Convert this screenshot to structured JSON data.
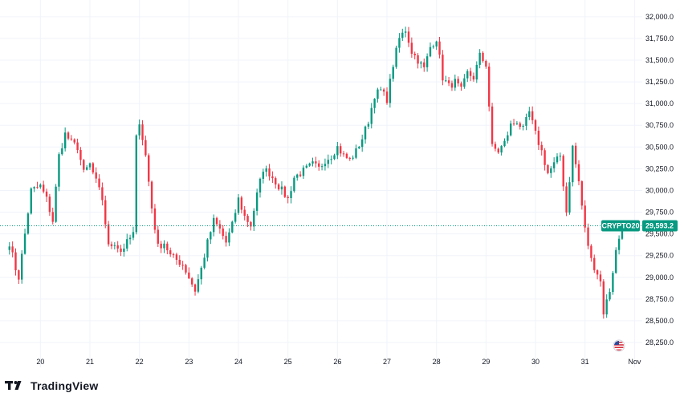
{
  "colors": {
    "up": "#089981",
    "down": "#f23645",
    "grid": "#f0f3fa",
    "axis_text": "#131722",
    "current_line": "#089981",
    "badge": "#089981"
  },
  "branding": {
    "logo_icon": "tradingview-logo-icon",
    "logo_text": "TradingView"
  },
  "event_icon": "us-flag-icon",
  "chart_data": {
    "type": "candlestick",
    "title": "",
    "symbol_label": "CRYPTO20",
    "current_price": 29593.2,
    "current_price_label": "29,593.2",
    "ylim": [
      28130,
      32100
    ],
    "y_ticks": [
      28250,
      28500,
      28750,
      29000,
      29250,
      29500,
      29750,
      30000,
      30250,
      30500,
      30750,
      31000,
      31250,
      31500,
      31750,
      32000
    ],
    "y_tick_labels": [
      "28,250.0",
      "28,500.0",
      "28,750.0",
      "29,000.0",
      "29,250.0",
      "29,500.0",
      "29,750.0",
      "30,000.0",
      "30,250.0",
      "30,500.0",
      "30,750.0",
      "31,000.0",
      "31,250.0",
      "31,500.0",
      "31,750.0",
      "32,000.0"
    ],
    "x_ticks": [
      {
        "label": "20",
        "bar": 10
      },
      {
        "label": "21",
        "bar": 26
      },
      {
        "label": "22",
        "bar": 42
      },
      {
        "label": "23",
        "bar": 58
      },
      {
        "label": "24",
        "bar": 74
      },
      {
        "label": "25",
        "bar": 90
      },
      {
        "label": "26",
        "bar": 106
      },
      {
        "label": "27",
        "bar": 122
      },
      {
        "label": "28",
        "bar": 138
      },
      {
        "label": "29",
        "bar": 154
      },
      {
        "label": "30",
        "bar": 170
      },
      {
        "label": "31",
        "bar": 186
      },
      {
        "label": "Nov",
        "bar": 202
      }
    ],
    "x_range_bars": [
      -1.5,
      204.5
    ],
    "keypoints": [
      [
        0,
        29400
      ],
      [
        2,
        29100
      ],
      [
        3,
        29000
      ],
      [
        5,
        29500
      ],
      [
        7,
        30000
      ],
      [
        10,
        30050
      ],
      [
        12,
        29900
      ],
      [
        14,
        29650
      ],
      [
        16,
        30400
      ],
      [
        18,
        30650
      ],
      [
        20,
        30550
      ],
      [
        22,
        30500
      ],
      [
        24,
        30200
      ],
      [
        26,
        30300
      ],
      [
        28,
        30100
      ],
      [
        30,
        29900
      ],
      [
        32,
        29350
      ],
      [
        34,
        29400
      ],
      [
        36,
        29300
      ],
      [
        38,
        29400
      ],
      [
        40,
        29500
      ],
      [
        41,
        30600
      ],
      [
        42,
        30800
      ],
      [
        44,
        30400
      ],
      [
        46,
        29800
      ],
      [
        48,
        29350
      ],
      [
        50,
        29400
      ],
      [
        52,
        29250
      ],
      [
        54,
        29200
      ],
      [
        56,
        29150
      ],
      [
        58,
        29000
      ],
      [
        60,
        28850
      ],
      [
        62,
        29100
      ],
      [
        64,
        29400
      ],
      [
        66,
        29650
      ],
      [
        68,
        29550
      ],
      [
        70,
        29400
      ],
      [
        72,
        29600
      ],
      [
        74,
        29900
      ],
      [
        76,
        29700
      ],
      [
        78,
        29600
      ],
      [
        80,
        29950
      ],
      [
        82,
        30250
      ],
      [
        84,
        30200
      ],
      [
        86,
        30100
      ],
      [
        88,
        30000
      ],
      [
        90,
        29900
      ],
      [
        92,
        30150
      ],
      [
        94,
        30200
      ],
      [
        96,
        30250
      ],
      [
        98,
        30300
      ],
      [
        100,
        30250
      ],
      [
        102,
        30350
      ],
      [
        104,
        30400
      ],
      [
        106,
        30500
      ],
      [
        108,
        30400
      ],
      [
        110,
        30350
      ],
      [
        112,
        30450
      ],
      [
        114,
        30600
      ],
      [
        116,
        30800
      ],
      [
        118,
        31100
      ],
      [
        120,
        31150
      ],
      [
        122,
        31050
      ],
      [
        124,
        31450
      ],
      [
        126,
        31750
      ],
      [
        128,
        31850
      ],
      [
        130,
        31600
      ],
      [
        132,
        31500
      ],
      [
        134,
        31400
      ],
      [
        136,
        31650
      ],
      [
        138,
        31750
      ],
      [
        140,
        31300
      ],
      [
        142,
        31200
      ],
      [
        144,
        31250
      ],
      [
        146,
        31150
      ],
      [
        148,
        31350
      ],
      [
        150,
        31300
      ],
      [
        152,
        31550
      ],
      [
        154,
        31450
      ],
      [
        156,
        30500
      ],
      [
        158,
        30450
      ],
      [
        160,
        30550
      ],
      [
        162,
        30750
      ],
      [
        164,
        30800
      ],
      [
        166,
        30700
      ],
      [
        168,
        30900
      ],
      [
        170,
        30650
      ],
      [
        172,
        30450
      ],
      [
        174,
        30200
      ],
      [
        176,
        30300
      ],
      [
        178,
        30400
      ],
      [
        180,
        29750
      ],
      [
        182,
        30500
      ],
      [
        184,
        30100
      ],
      [
        186,
        29550
      ],
      [
        188,
        29200
      ],
      [
        190,
        29050
      ],
      [
        191,
        28950
      ],
      [
        192,
        28600
      ],
      [
        194,
        28850
      ],
      [
        196,
        29300
      ],
      [
        198,
        29600
      ]
    ],
    "seed": 7
  }
}
